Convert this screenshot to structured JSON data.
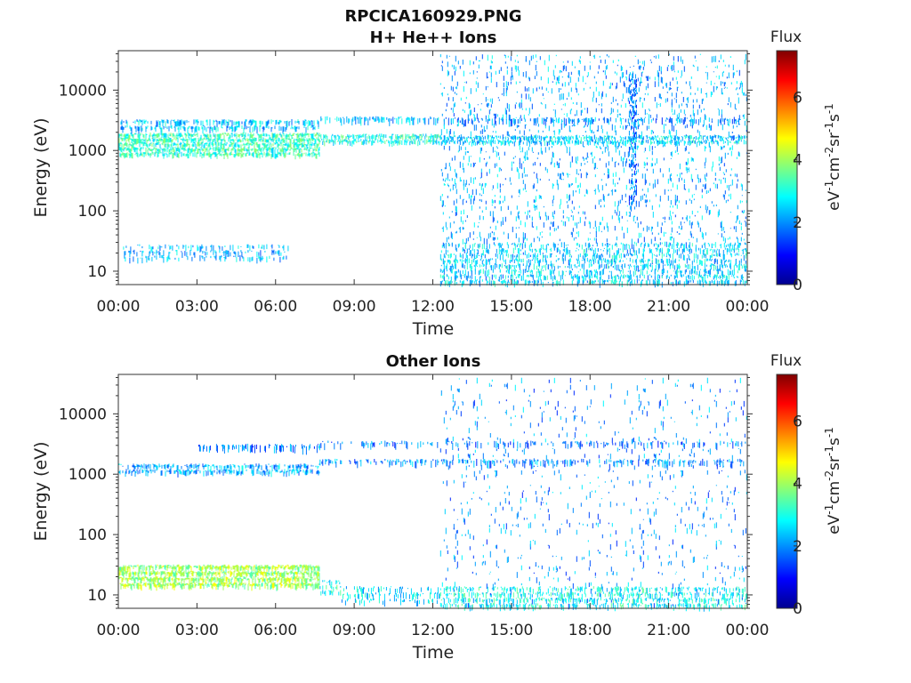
{
  "chart_data": [
    {
      "type": "heatmap",
      "title": "RPCICA160929.PNG",
      "subtitle": "H+ He++ Ions",
      "xlabel": "Time",
      "ylabel": "Energy (eV)",
      "x_ticks": [
        "00:00",
        "03:00",
        "06:00",
        "09:00",
        "12:00",
        "15:00",
        "18:00",
        "21:00",
        "00:00"
      ],
      "xlim_hours": [
        0,
        24
      ],
      "y_scale": "log",
      "y_ticks": [
        {
          "value": 10,
          "label": "10"
        },
        {
          "value": 100,
          "label": "100"
        },
        {
          "value": 1000,
          "label": "1000"
        },
        {
          "value": 10000,
          "label": "10000"
        }
      ],
      "ylim": [
        6,
        45000
      ],
      "colorbar": {
        "title": "Flux",
        "label": "eV-1cm-2sr-1s-1",
        "label_parts": [
          "eV",
          "-1",
          "cm",
          "-2",
          "sr",
          "-1",
          "s",
          "-1"
        ],
        "range": [
          0,
          7.5
        ],
        "ticks": [
          {
            "value": 0,
            "label": "0"
          },
          {
            "value": 2,
            "label": "2"
          },
          {
            "value": 4,
            "label": "4"
          },
          {
            "value": 6,
            "label": "6"
          }
        ],
        "colormap": "jet"
      },
      "bands": [
        {
          "t0": 0.0,
          "t1": 7.7,
          "e_lo": 800,
          "e_hi": 2000,
          "level": 3.2,
          "density": 0.85
        },
        {
          "t0": 0.0,
          "t1": 7.7,
          "e_lo": 2100,
          "e_hi": 3300,
          "level": 2.4,
          "density": 0.55
        },
        {
          "t0": 7.7,
          "t1": 12.3,
          "e_lo": 1300,
          "e_hi": 1900,
          "level": 3.0,
          "density": 0.8
        },
        {
          "t0": 7.7,
          "t1": 12.3,
          "e_lo": 2800,
          "e_hi": 3700,
          "level": 2.3,
          "density": 0.55
        },
        {
          "t0": 12.3,
          "t1": 24.0,
          "e_lo": 1300,
          "e_hi": 1800,
          "level": 2.6,
          "density": 0.7
        },
        {
          "t0": 12.3,
          "t1": 24.0,
          "e_lo": 2800,
          "e_hi": 3600,
          "level": 2.0,
          "density": 0.4
        },
        {
          "t0": 0.2,
          "t1": 6.5,
          "e_lo": 15,
          "e_hi": 28,
          "level": 2.3,
          "density": 0.35
        },
        {
          "t0": 12.3,
          "t1": 24.0,
          "e_lo": 6,
          "e_hi": 40000,
          "level": 2.2,
          "density": 0.14
        },
        {
          "t0": 12.3,
          "t1": 24.0,
          "e_lo": 6,
          "e_hi": 30,
          "level": 2.6,
          "density": 0.35
        },
        {
          "t0": 19.5,
          "t1": 19.8,
          "e_lo": 100,
          "e_hi": 20000,
          "level": 1.8,
          "density": 0.5
        }
      ]
    },
    {
      "type": "heatmap",
      "title": "Other Ions",
      "xlabel": "Time",
      "ylabel": "Energy (eV)",
      "x_ticks": [
        "00:00",
        "03:00",
        "06:00",
        "09:00",
        "12:00",
        "15:00",
        "18:00",
        "21:00",
        "00:00"
      ],
      "xlim_hours": [
        0,
        24
      ],
      "y_scale": "log",
      "y_ticks": [
        {
          "value": 10,
          "label": "10"
        },
        {
          "value": 100,
          "label": "100"
        },
        {
          "value": 1000,
          "label": "1000"
        },
        {
          "value": 10000,
          "label": "10000"
        }
      ],
      "ylim": [
        6,
        45000
      ],
      "colorbar": {
        "title": "Flux",
        "label": "eV-1cm-2sr-1s-1",
        "label_parts": [
          "eV",
          "-1",
          "cm",
          "-2",
          "sr",
          "-1",
          "s",
          "-1"
        ],
        "range": [
          0,
          7.5
        ],
        "ticks": [
          {
            "value": 0,
            "label": "0"
          },
          {
            "value": 2,
            "label": "2"
          },
          {
            "value": 4,
            "label": "4"
          },
          {
            "value": 6,
            "label": "6"
          }
        ],
        "colormap": "jet"
      },
      "bands": [
        {
          "t0": 0.0,
          "t1": 7.7,
          "e_lo": 1000,
          "e_hi": 1500,
          "level": 2.2,
          "density": 0.6
        },
        {
          "t0": 3.0,
          "t1": 7.7,
          "e_lo": 2400,
          "e_hi": 3200,
          "level": 1.8,
          "density": 0.45
        },
        {
          "t0": 7.7,
          "t1": 24.0,
          "e_lo": 1400,
          "e_hi": 1800,
          "level": 2.0,
          "density": 0.45
        },
        {
          "t0": 7.7,
          "t1": 24.0,
          "e_lo": 2800,
          "e_hi": 3600,
          "level": 1.8,
          "density": 0.3
        },
        {
          "t0": 0.0,
          "t1": 7.7,
          "e_lo": 13,
          "e_hi": 32,
          "level": 4.0,
          "density": 0.9
        },
        {
          "t0": 7.7,
          "t1": 8.5,
          "e_lo": 10,
          "e_hi": 18,
          "level": 3.0,
          "density": 0.4
        },
        {
          "t0": 8.5,
          "t1": 12.3,
          "e_lo": 7,
          "e_hi": 14,
          "level": 2.6,
          "density": 0.3
        },
        {
          "t0": 12.3,
          "t1": 24.0,
          "e_lo": 6,
          "e_hi": 14,
          "level": 2.9,
          "density": 0.45
        },
        {
          "t0": 12.3,
          "t1": 24.0,
          "e_lo": 6,
          "e_hi": 40000,
          "level": 2.0,
          "density": 0.05
        }
      ]
    }
  ]
}
